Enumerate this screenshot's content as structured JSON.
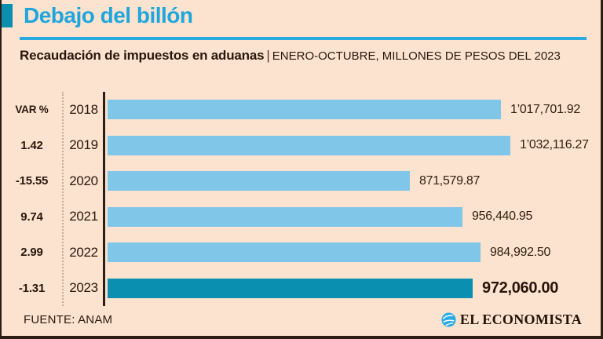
{
  "page": {
    "title": "Debajo del billón",
    "subtitle_bold": "Recaudación de impuestos en aduanas",
    "subtitle_sep": "|",
    "subtitle_rest": "ENERO-OCTUBRE, MILLONES DE PESOS DEL 2023",
    "source": "FUENTE: ANAM",
    "brand": "EL ECONOMISTA"
  },
  "icons": {
    "brand_globe": "el-economista-globe-icon"
  },
  "colors": {
    "background": "#FBE3D0",
    "title_cyan": "#1FA6DD",
    "rule_blue": "#29ABE2",
    "bar_light_blue": "#7FC6E8",
    "bar_highlight_teal": "#0B8FB1",
    "dark_text": "#2A170C",
    "frame_border": "#2D1D12",
    "dotted_separator": "#C9A795"
  },
  "chart_data": {
    "type": "bar",
    "orientation": "horizontal",
    "title": "Debajo del billón",
    "subtitle": "Recaudación de impuestos en aduanas | ENERO-OCTUBRE, MILLONES DE PESOS DEL 2023",
    "var_header": "VAR %",
    "categories": [
      "2018",
      "2019",
      "2020",
      "2021",
      "2022",
      "2023"
    ],
    "values": [
      1017701.92,
      1032116.27,
      871579.87,
      956440.95,
      984992.5,
      972060.0
    ],
    "value_labels": [
      "1’017,701.92",
      "1’032,116.27",
      "871,579.87",
      "956,440.95",
      "984,992.50",
      "972,060.00"
    ],
    "var_pct": [
      null,
      1.42,
      -15.55,
      9.74,
      2.99,
      -1.31
    ],
    "var_labels": [
      "",
      "1.42",
      "-15.55",
      "9.74",
      "2.99",
      "-1.31"
    ],
    "highlight_index": 5,
    "xlim": [
      390000,
      1040000
    ],
    "grid": false,
    "legend": false,
    "source": "FUENTE: ANAM"
  }
}
